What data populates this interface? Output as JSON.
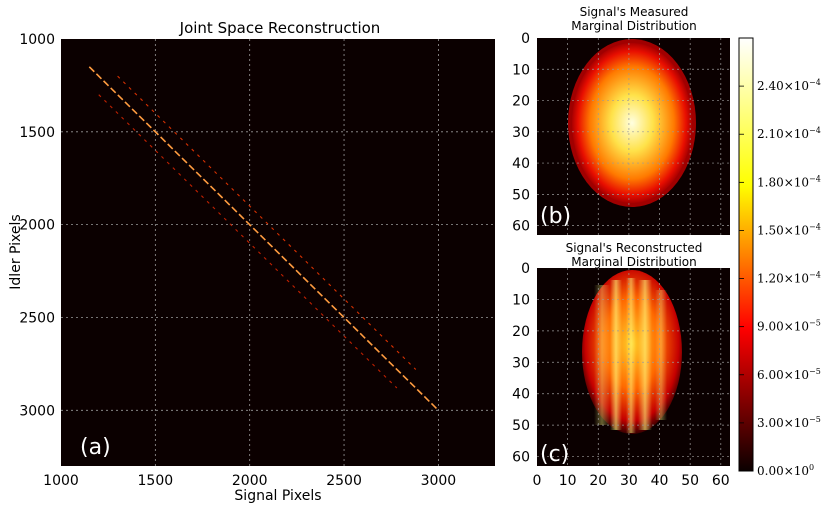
{
  "chart_data": [
    {
      "type": "heatmap",
      "panel": "a",
      "title": "Joint Space Reconstruction",
      "xlabel": "Signal Pixels",
      "ylabel": "Idler Pixels",
      "xlim": [
        1000,
        3300
      ],
      "ylim": [
        3300,
        1000
      ],
      "xticks": [
        "1000",
        "1500",
        "2000",
        "2500",
        "3000"
      ],
      "yticks": [
        "1000",
        "1500",
        "2000",
        "2500",
        "3000"
      ],
      "grid": true,
      "panel_label": "(a)",
      "description_series": [
        {
          "name": "main diagonal",
          "x": [
            1150,
            3000
          ],
          "y": [
            1150,
            3000
          ]
        },
        {
          "name": "upper ridge",
          "x": [
            1300,
            2880
          ],
          "y": [
            1200,
            2780
          ]
        },
        {
          "name": "lower ridge",
          "x": [
            1200,
            2780
          ],
          "y": [
            1300,
            2880
          ]
        }
      ]
    },
    {
      "type": "heatmap",
      "panel": "b",
      "title_line1": "Signal's Measured",
      "title_line2": "Marginal Distribution",
      "xlim": [
        0,
        63
      ],
      "ylim": [
        63,
        0
      ],
      "yticks": [
        "0",
        "10",
        "20",
        "30",
        "40",
        "50",
        "60"
      ],
      "grid": true,
      "panel_label": "(b)",
      "shape": "elliptical blob centered near (32, 30), peak ~2.6e-4"
    },
    {
      "type": "heatmap",
      "panel": "c",
      "title_line1": "Signal's Reconstructed",
      "title_line2": "Marginal Distribution",
      "xlim": [
        0,
        63
      ],
      "ylim": [
        63,
        0
      ],
      "xticks": [
        "0",
        "10",
        "20",
        "30",
        "40",
        "50",
        "60"
      ],
      "yticks": [
        "0",
        "10",
        "20",
        "30",
        "40",
        "50",
        "60"
      ],
      "grid": true,
      "panel_label": "(c)",
      "shape": "vertically striped blob centered near (31, 26)"
    }
  ],
  "colorbar": {
    "cmap": "hot",
    "range": [
      0,
      0.00027
    ],
    "ticks": [
      {
        "mant": "0.00",
        "exp": "0",
        "value": 0
      },
      {
        "mant": "3.00",
        "exp": "−5",
        "value": 3e-05
      },
      {
        "mant": "6.00",
        "exp": "−5",
        "value": 6e-05
      },
      {
        "mant": "9.00",
        "exp": "−5",
        "value": 9e-05
      },
      {
        "mant": "1.20",
        "exp": "−4",
        "value": 0.00012
      },
      {
        "mant": "1.50",
        "exp": "−4",
        "value": 0.00015
      },
      {
        "mant": "1.80",
        "exp": "−4",
        "value": 0.00018
      },
      {
        "mant": "2.10",
        "exp": "−4",
        "value": 0.00021
      },
      {
        "mant": "2.40",
        "exp": "−4",
        "value": 0.00024
      }
    ]
  }
}
